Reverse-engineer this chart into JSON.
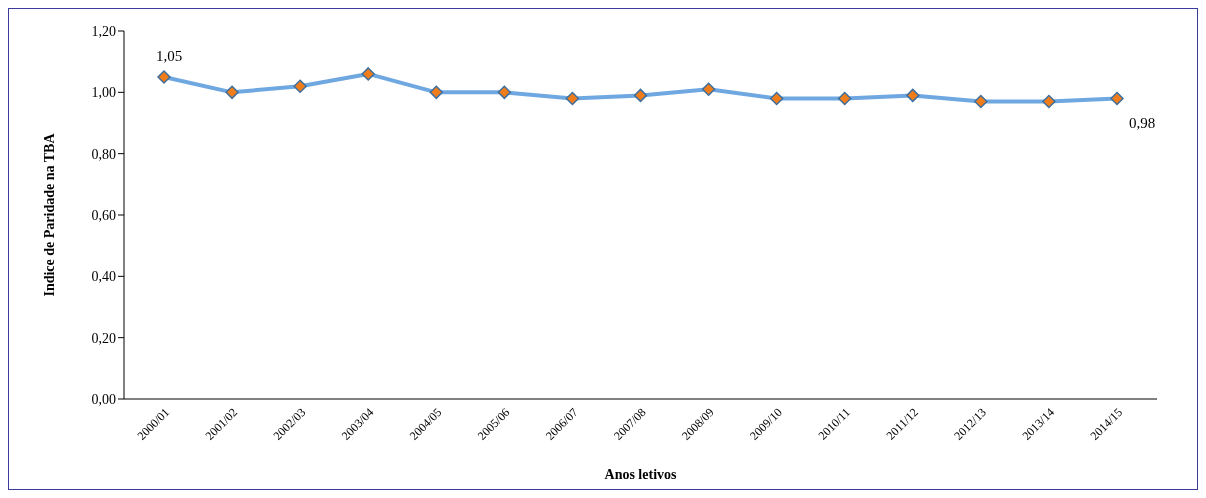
{
  "chart_data": {
    "type": "line",
    "xlabel": "Anos letivos",
    "ylabel": "Indice de Paridade na TBA",
    "categories": [
      "2000/01",
      "2001/02",
      "2002/03",
      "2003/04",
      "2004/05",
      "2005/06",
      "2006/07",
      "2007/08",
      "2008/09",
      "2009/10",
      "2010/11",
      "2011/12",
      "2012/13",
      "2013/14",
      "2014/15"
    ],
    "series": [
      {
        "color": "#6fa8e0",
        "values": [
          1.05,
          1.0,
          1.02,
          1.06,
          1.0,
          1.0,
          0.98,
          0.99,
          1.01,
          0.98,
          0.98,
          0.99,
          0.97,
          0.97,
          0.98
        ],
        "value_labels": [
          "1,05",
          null,
          null,
          null,
          null,
          null,
          null,
          null,
          null,
          null,
          null,
          null,
          null,
          null,
          "0,98"
        ]
      }
    ],
    "ylim": [
      0,
      1.2
    ],
    "yticks": [
      {
        "value": 0,
        "label": "0,00"
      },
      {
        "value": 0.2,
        "label": "0,20"
      },
      {
        "value": 0.4,
        "label": "0,40"
      },
      {
        "value": 0.6,
        "label": "0,60"
      },
      {
        "value": 0.8,
        "label": "0,80"
      },
      {
        "value": 1,
        "label": "1,00"
      },
      {
        "value": 1.2,
        "label": "1,20"
      }
    ],
    "grid": false,
    "legend": false,
    "marker": "diamond",
    "line_style": "solid"
  }
}
